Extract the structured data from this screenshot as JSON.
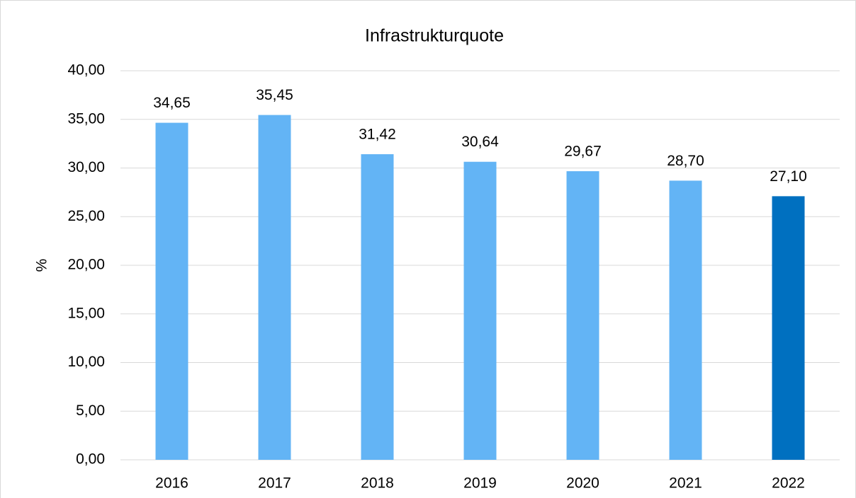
{
  "chart_data": {
    "type": "bar",
    "title": "Infrastrukturquote",
    "y_label": "%",
    "categories": [
      "2016",
      "2017",
      "2018",
      "2019",
      "2020",
      "2021",
      "2022"
    ],
    "values": [
      34.65,
      35.45,
      31.42,
      30.64,
      29.67,
      28.7,
      27.1
    ],
    "value_labels": [
      "34,65",
      "35,45",
      "31,42",
      "30,64",
      "29,67",
      "28,70",
      "27,10"
    ],
    "colors": [
      "#63b4f5",
      "#63b4f5",
      "#63b4f5",
      "#63b4f5",
      "#63b4f5",
      "#63b4f5",
      "#0070c0"
    ],
    "ylim": [
      0,
      40
    ],
    "yticks": [
      {
        "value": 0,
        "label": "0,00"
      },
      {
        "value": 5,
        "label": "5,00"
      },
      {
        "value": 10,
        "label": "10,00"
      },
      {
        "value": 15,
        "label": "15,00"
      },
      {
        "value": 20,
        "label": "20,00"
      },
      {
        "value": 25,
        "label": "25,00"
      },
      {
        "value": 30,
        "label": "30,00"
      },
      {
        "value": 35,
        "label": "35,00"
      },
      {
        "value": 40,
        "label": "40,00"
      }
    ],
    "grid": true
  }
}
